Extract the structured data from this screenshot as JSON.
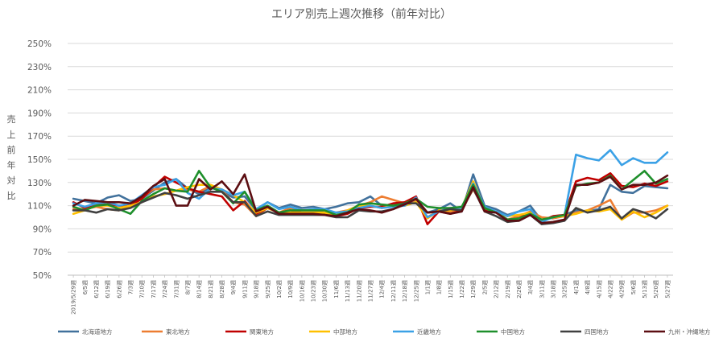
{
  "chart_data": {
    "type": "line",
    "title": "エリア別売上週次推移（前年対比）",
    "ylabel": "売上前年対比",
    "ylim": [
      50,
      250
    ],
    "yticks": [
      "50%",
      "70%",
      "90%",
      "110%",
      "130%",
      "150%",
      "170%",
      "190%",
      "210%",
      "230%",
      "250%"
    ],
    "grid": true,
    "legend_position": "bottom",
    "x": [
      "2019/5/29週",
      "6/5週",
      "6/12週",
      "6/19週",
      "6/26週",
      "7/3週",
      "7/10週",
      "7/17週",
      "7/24週",
      "7/31週",
      "8/7週",
      "8/14週",
      "8/21週",
      "8/28週",
      "9/4週",
      "9/11週",
      "9/18週",
      "9/25週",
      "10/2週",
      "10/9週",
      "10/16週",
      "10/23週",
      "10/30週",
      "11/6週",
      "11/13週",
      "11/20週",
      "11/27週",
      "12/4週",
      "12/11週",
      "12/18週",
      "12/25週",
      "1/1週",
      "1/8週",
      "1/15週",
      "1/22週",
      "1/29週",
      "2/5週",
      "2/12週",
      "2/19週",
      "2/26週",
      "3/4週",
      "3/11週",
      "3/18週",
      "3/25週",
      "4/1週",
      "4/8週",
      "4/15週",
      "4/22週",
      "4/29週",
      "5/6週",
      "5/13週",
      "5/20週",
      "5/27週"
    ],
    "series": [
      {
        "name": "北海道地方",
        "color": "#41719C",
        "values": [
          116,
          114,
          112,
          117,
          119,
          114,
          116,
          123,
          130,
          133,
          125,
          120,
          126,
          122,
          117,
          118,
          106,
          113,
          108,
          111,
          108,
          109,
          107,
          109,
          112,
          113,
          118,
          110,
          111,
          112,
          113,
          104,
          107,
          112,
          105,
          137,
          110,
          107,
          102,
          105,
          110,
          97,
          100,
          102,
          106,
          105,
          107,
          128,
          122,
          121,
          127,
          126,
          125
        ]
      },
      {
        "name": "東北地方",
        "color": "#ED7D31",
        "values": [
          107,
          107,
          109,
          107,
          106,
          110,
          117,
          124,
          125,
          123,
          124,
          122,
          127,
          123,
          113,
          111,
          101,
          108,
          104,
          108,
          106,
          106,
          104,
          104,
          106,
          110,
          113,
          118,
          115,
          112,
          115,
          100,
          106,
          105,
          107,
          124,
          107,
          104,
          98,
          101,
          105,
          100,
          99,
          101,
          104,
          106,
          110,
          115,
          98,
          104,
          104,
          106,
          110
        ]
      },
      {
        "name": "関東地方",
        "color": "#C00000",
        "values": [
          113,
          108,
          111,
          111,
          110,
          110,
          116,
          126,
          135,
          130,
          125,
          122,
          120,
          118,
          106,
          114,
          103,
          108,
          104,
          106,
          104,
          104,
          103,
          101,
          103,
          108,
          109,
          109,
          112,
          113,
          118,
          94,
          105,
          103,
          106,
          130,
          106,
          104,
          98,
          99,
          104,
          97,
          101,
          102,
          131,
          134,
          132,
          138,
          127,
          126,
          129,
          127,
          131
        ]
      },
      {
        "name": "中部地方",
        "color": "#FFC000",
        "values": [
          103,
          106,
          110,
          110,
          108,
          110,
          113,
          118,
          120,
          123,
          126,
          128,
          128,
          124,
          119,
          113,
          104,
          108,
          104,
          104,
          104,
          104,
          104,
          101,
          106,
          110,
          110,
          108,
          110,
          110,
          113,
          99,
          106,
          106,
          108,
          131,
          108,
          104,
          101,
          102,
          104,
          98,
          100,
          101,
          103,
          106,
          105,
          107,
          98,
          105,
          100,
          104,
          110
        ]
      },
      {
        "name": "近畿地方",
        "color": "#3BA1E6",
        "values": [
          112,
          109,
          112,
          113,
          110,
          112,
          119,
          126,
          128,
          133,
          121,
          116,
          125,
          124,
          119,
          122,
          107,
          113,
          107,
          109,
          106,
          107,
          107,
          104,
          105,
          108,
          110,
          108,
          109,
          110,
          117,
          100,
          105,
          108,
          108,
          129,
          109,
          105,
          101,
          105,
          107,
          96,
          100,
          102,
          154,
          151,
          149,
          158,
          145,
          151,
          147,
          147,
          156
        ]
      },
      {
        "name": "中国地方",
        "color": "#1E8F2B",
        "values": [
          109,
          106,
          110,
          111,
          107,
          103,
          114,
          120,
          125,
          123,
          122,
          140,
          126,
          122,
          112,
          122,
          106,
          110,
          104,
          106,
          106,
          106,
          106,
          102,
          104,
          111,
          112,
          111,
          110,
          112,
          116,
          109,
          108,
          108,
          109,
          128,
          108,
          104,
          98,
          99,
          103,
          98,
          100,
          102,
          127,
          129,
          130,
          136,
          124,
          132,
          140,
          129,
          133
        ]
      },
      {
        "name": "四国地方",
        "color": "#404040",
        "values": [
          106,
          106,
          104,
          107,
          106,
          108,
          113,
          117,
          121,
          119,
          116,
          119,
          122,
          122,
          113,
          113,
          101,
          105,
          102,
          102,
          102,
          102,
          102,
          100,
          100,
          106,
          105,
          105,
          107,
          112,
          112,
          104,
          105,
          107,
          106,
          125,
          105,
          101,
          96,
          97,
          102,
          94,
          95,
          97,
          108,
          104,
          106,
          109,
          99,
          107,
          104,
          99,
          107
        ]
      },
      {
        "name": "九州・沖縄地方",
        "color": "#5C0E12",
        "values": [
          110,
          115,
          114,
          113,
          113,
          112,
          118,
          127,
          133,
          110,
          110,
          133,
          124,
          131,
          120,
          137,
          105,
          109,
          103,
          103,
          103,
          103,
          102,
          101,
          104,
          107,
          106,
          104,
          107,
          111,
          116,
          104,
          105,
          103,
          105,
          126,
          105,
          104,
          97,
          97,
          102,
          95,
          96,
          98,
          128,
          128,
          130,
          135,
          124,
          128,
          128,
          130,
          136
        ]
      }
    ]
  }
}
